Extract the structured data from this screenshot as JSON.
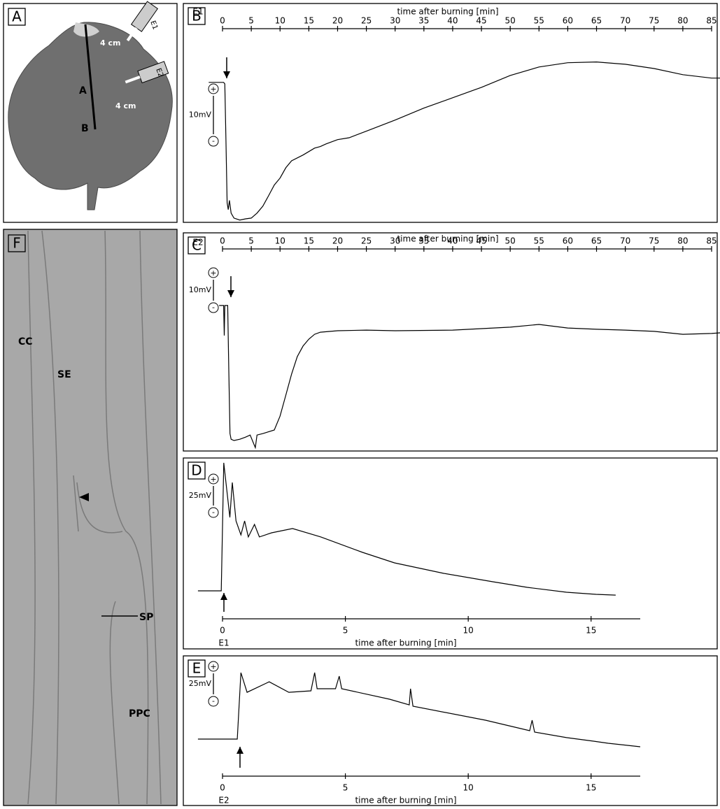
{
  "panels": {
    "A": {
      "label": "A",
      "distance_1": "4 cm",
      "distance_2": "4 cm",
      "point_a": "A",
      "point_b": "B",
      "electrode_1": "E1",
      "electrode_2": "E2"
    },
    "F": {
      "label": "F",
      "cc": "CC",
      "se": "SE",
      "sp": "SP",
      "ppc": "PPC"
    }
  },
  "chart_data": [
    {
      "type": "line",
      "panel": "B",
      "title": "time after burning [min]",
      "xlim": [
        0,
        85
      ],
      "xticks": [
        0,
        5,
        10,
        15,
        20,
        25,
        30,
        35,
        40,
        45,
        50,
        55,
        60,
        65,
        70,
        75,
        80,
        85
      ],
      "ylim": [
        -36.4,
        10.5
      ],
      "scale_bar": {
        "value": 10,
        "label": "10mV",
        "plus": "+",
        "minus": "-"
      },
      "series": [
        {
          "name": "E1",
          "color": "#000000",
          "x": [
            -2.4,
            0.2,
            0.4,
            0.6,
            0.8,
            1.0,
            1.2,
            1.5,
            2,
            3,
            4,
            5,
            6,
            7,
            8,
            9,
            10,
            11,
            12,
            14,
            16,
            17,
            18,
            20,
            22,
            25,
            30,
            35,
            40,
            45,
            50,
            55,
            60,
            65,
            70,
            75,
            80,
            85,
            86.5
          ],
          "values": [
            0,
            0,
            -0.4,
            -14.9,
            -31.3,
            -33.1,
            -30.7,
            -34.0,
            -35.3,
            -35.8,
            -35.5,
            -35.3,
            -34.0,
            -32.2,
            -29.5,
            -26.7,
            -24.9,
            -22.2,
            -20.4,
            -18.9,
            -17.1,
            -16.7,
            -16.0,
            -14.9,
            -14.4,
            -12.7,
            -9.8,
            -6.7,
            -4.0,
            -1.3,
            1.8,
            4.0,
            5.1,
            5.3,
            4.7,
            3.6,
            2.0,
            1.1,
            1.1
          ]
        }
      ]
    },
    {
      "type": "line",
      "panel": "C",
      "title": "time after burning [min]",
      "xlim": [
        0,
        85
      ],
      "xticks": [
        0,
        5,
        10,
        15,
        20,
        25,
        30,
        35,
        40,
        45,
        50,
        55,
        60,
        65,
        70,
        75,
        80,
        85
      ],
      "ylim": [
        -69.3,
        22.3
      ],
      "scale_bar": {
        "value": 10,
        "label": "10mV",
        "plus": "+",
        "minus": "-"
      },
      "series": [
        {
          "name": "E2",
          "color": "#000000",
          "x": [
            -0.6,
            0.2,
            0.3,
            0.4,
            0.9,
            1.1,
            1.3,
            1.5,
            2,
            3,
            4,
            4.8,
            5.7,
            6,
            7,
            9,
            10,
            11,
            12,
            13,
            14,
            15,
            16,
            17,
            20,
            25,
            30,
            40,
            50,
            55,
            60,
            65,
            70,
            75,
            80,
            85,
            86.5
          ],
          "values": [
            0,
            0,
            -14.3,
            0,
            0,
            -31.0,
            -61.0,
            -63.7,
            -64.3,
            -63.7,
            -62.7,
            -61.7,
            -67.7,
            -61.7,
            -61.0,
            -59.3,
            -52.7,
            -42.7,
            -32.7,
            -24.3,
            -19.3,
            -16.0,
            -13.7,
            -12.7,
            -12.0,
            -11.7,
            -12.0,
            -11.7,
            -10.3,
            -9.0,
            -10.7,
            -11.3,
            -11.7,
            -12.3,
            -13.7,
            -13.3,
            -13.0
          ]
        }
      ]
    },
    {
      "type": "line",
      "panel": "D",
      "title": "time after burning [min]",
      "xlim": [
        0,
        17
      ],
      "xticks": [
        0,
        5,
        10,
        15
      ],
      "ylim": [
        -35.7,
        169.6
      ],
      "scale_bar": {
        "value": 25,
        "label": "25mV",
        "plus": "+",
        "minus": "-"
      },
      "series": [
        {
          "name": "E1",
          "color": "#000000",
          "x": [
            -1.0,
            -0.05,
            0.05,
            0.3,
            0.4,
            0.55,
            0.75,
            0.9,
            1.05,
            1.3,
            1.5,
            2,
            2.85,
            4,
            5.7,
            7,
            9,
            11,
            12.4,
            14,
            15.2,
            16
          ],
          "values": [
            0,
            0,
            163.4,
            93.8,
            138.4,
            89.3,
            71.4,
            89.3,
            68.8,
            84.8,
            68.8,
            74.1,
            79.5,
            68.8,
            49.1,
            35.7,
            22.3,
            11.6,
            4.5,
            -1.8,
            -4.5,
            -5.4
          ]
        }
      ]
    },
    {
      "type": "line",
      "panel": "E",
      "title": "time after burning [min]",
      "xlim": [
        0,
        17
      ],
      "xticks": [
        0,
        5,
        10,
        15
      ],
      "ylim": [
        -44.2,
        89.2
      ],
      "scale_bar": {
        "value": 25,
        "label": "25mV",
        "plus": "+",
        "minus": "-"
      },
      "series": [
        {
          "name": "E2",
          "color": "#000000",
          "x": [
            -1.0,
            0.6,
            0.75,
            1.0,
            1.9,
            2.7,
            3.6,
            3.75,
            3.85,
            4.6,
            4.75,
            4.85,
            6.8,
            7.6,
            7.65,
            7.75,
            10.7,
            12.5,
            12.6,
            12.7,
            14,
            15.1,
            15.7,
            17
          ],
          "values": [
            0,
            0,
            79.2,
            55.8,
            68.3,
            55.8,
            57.5,
            79.2,
            60.0,
            60.0,
            75.0,
            60.0,
            47.5,
            40.8,
            60.0,
            39.2,
            22.5,
            10.0,
            22.5,
            8.3,
            1.7,
            -2.5,
            -5.0,
            -9.2
          ]
        }
      ]
    }
  ]
}
